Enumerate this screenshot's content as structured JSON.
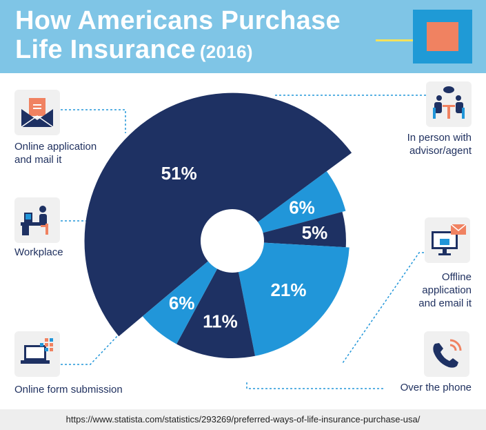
{
  "header": {
    "title_line1": "How Americans Purchase",
    "title_line2": "Life Insurance",
    "title_year": "(2016)"
  },
  "colors": {
    "header_bg": "#7fc5e6",
    "dark_navy": "#1e3163",
    "light_blue": "#2196d9",
    "accent_orange": "#f08261",
    "accent_yellow": "#f4e15b",
    "connector": "#2196d9"
  },
  "chart_data": {
    "type": "pie",
    "donut": true,
    "slices": [
      {
        "label": "In person with advisor/agent",
        "value": 51,
        "value_label": "51%",
        "color": "#1e3163"
      },
      {
        "label": "Offline application and email it",
        "value": 6,
        "value_label": "6%",
        "color": "#2196d9"
      },
      {
        "label": "Over the phone",
        "value": 5,
        "value_label": "5%",
        "color": "#1e3163"
      },
      {
        "label": "Online form submission",
        "value": 21,
        "value_label": "21%",
        "color": "#2196d9"
      },
      {
        "label": "Workplace",
        "value": 11,
        "value_label": "11%",
        "color": "#1e3163"
      },
      {
        "label": "Online application and mail it",
        "value": 6,
        "value_label": "6%",
        "color": "#2196d9"
      }
    ]
  },
  "categories": {
    "online_mail": {
      "line1": "Online application",
      "line2": "and mail it",
      "icon": "envelope-icon"
    },
    "workplace": {
      "line1": "Workplace",
      "icon": "office-desk-icon"
    },
    "online_form": {
      "line1": "Online form submission",
      "icon": "laptop-icon"
    },
    "in_person": {
      "line1": "In person with",
      "line2": "advisor/agent",
      "icon": "meeting-icon"
    },
    "offline_email": {
      "line1": "Offline",
      "line2": "application",
      "line3": "and email it",
      "icon": "monitor-email-icon"
    },
    "phone": {
      "line1": "Over the phone",
      "icon": "phone-icon"
    }
  },
  "footer": {
    "source_url": "https://www.statista.com/statistics/293269/preferred-ways-of-life-insurance-purchase-usa/"
  }
}
